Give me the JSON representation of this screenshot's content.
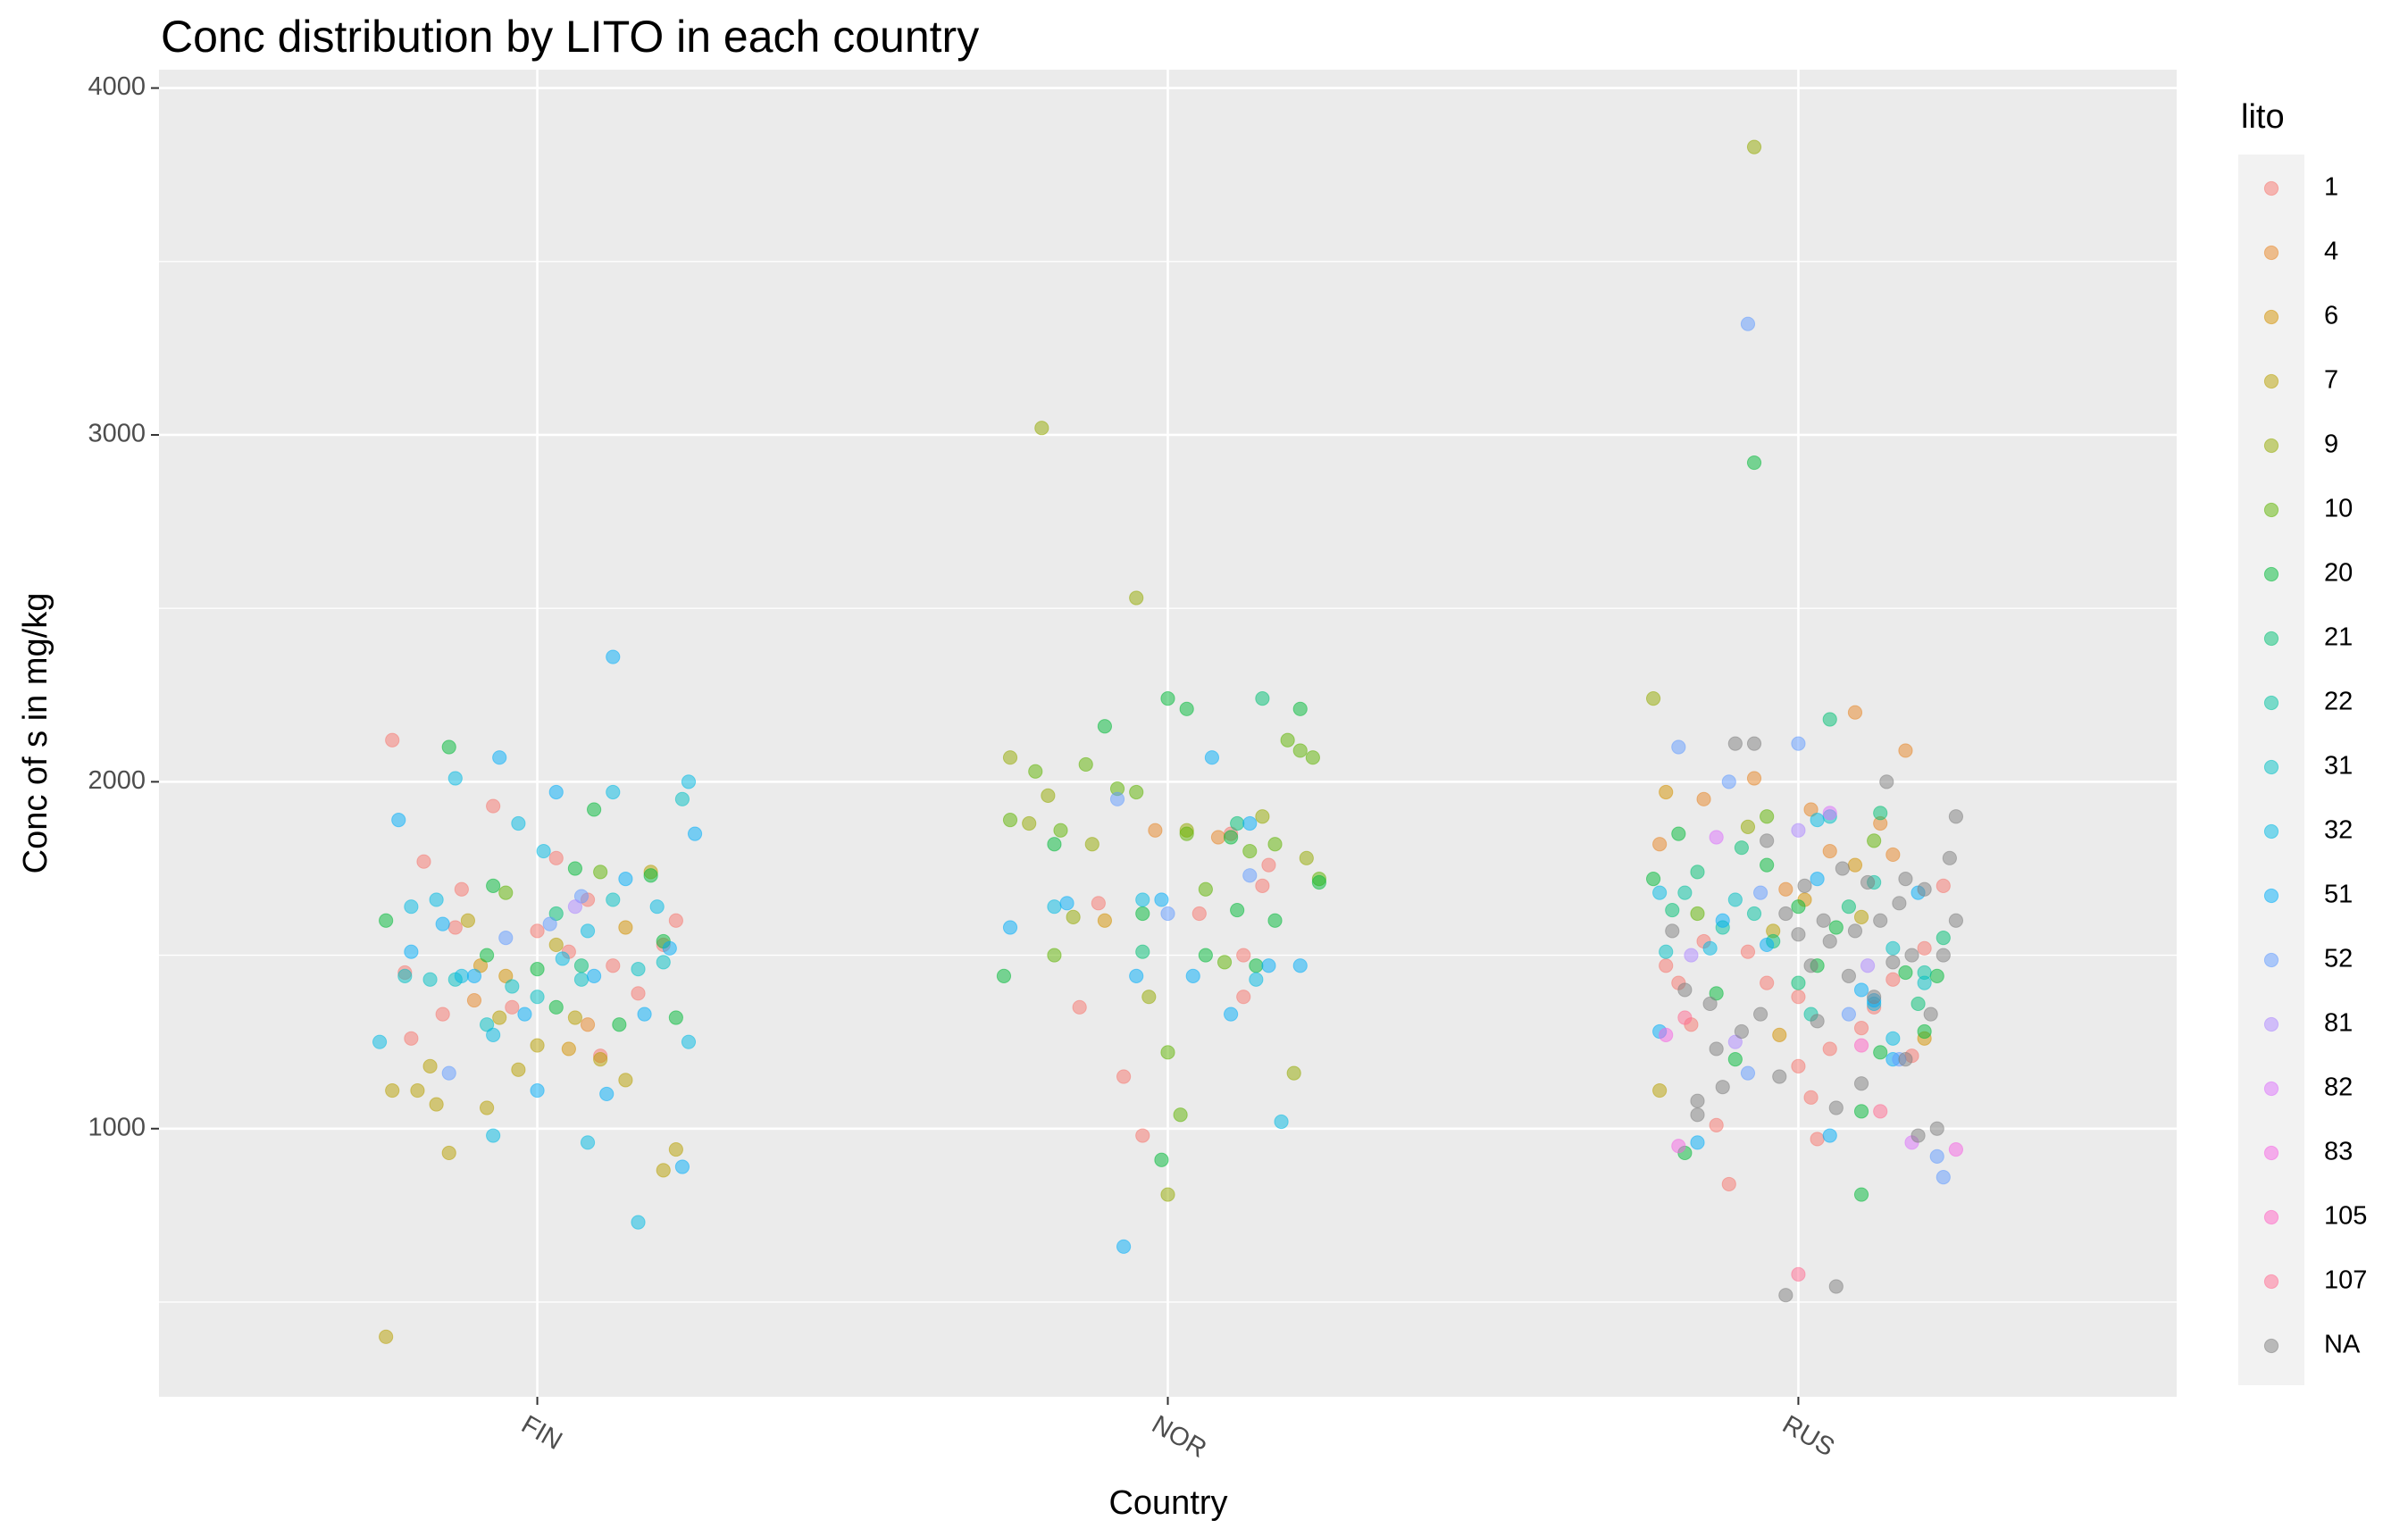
{
  "chart_data": {
    "type": "scatter",
    "title": "Conc distribution by LITO in each country",
    "x_label": "Country",
    "y_label": "Conc of  s  in mg/kg",
    "legend_title": "lito",
    "legend_position": "right",
    "grid": true,
    "point_alpha": 0.5,
    "xlim": [
      0.4,
      3.6
    ],
    "xticks": [
      {
        "value": 1,
        "label": "FIN"
      },
      {
        "value": 2,
        "label": "NOR"
      },
      {
        "value": 3,
        "label": "RUS"
      }
    ],
    "ylim": [
      227,
      4053
    ],
    "yticks": [
      1000,
      2000,
      3000,
      4000
    ],
    "yminorticks": [
      500,
      1500,
      2500,
      3500
    ],
    "series": [
      {
        "name": "1",
        "color": "#F8766D",
        "x": [
          0.77,
          0.79,
          0.82,
          0.85,
          0.88,
          0.93,
          0.96,
          1.0,
          1.03,
          1.05,
          1.08,
          1.12,
          1.16,
          1.2,
          1.22,
          0.8,
          1.1,
          0.87,
          1.86,
          1.89,
          1.93,
          1.96,
          2.05,
          2.12,
          2.12,
          2.16,
          2.15,
          2.1,
          2.79,
          2.81,
          2.83,
          2.85,
          2.87,
          2.89,
          2.92,
          2.95,
          3.0,
          3.02,
          3.03,
          3.05,
          3.1,
          3.12,
          3.15,
          3.18,
          3.2,
          3.23,
          3.0
        ],
        "values": [
          2120,
          1450,
          1770,
          1330,
          1690,
          1930,
          1350,
          1570,
          1780,
          1510,
          1660,
          1470,
          1390,
          1530,
          1600,
          1260,
          1210,
          1580,
          1350,
          1650,
          1150,
          980,
          1620,
          1380,
          1500,
          1760,
          1700,
          1850,
          1470,
          1420,
          1300,
          1540,
          1010,
          840,
          1510,
          1420,
          1180,
          1090,
          970,
          1230,
          1290,
          1350,
          1430,
          1210,
          1520,
          1700,
          1380
        ]
      },
      {
        "name": "4",
        "color": "#E88526",
        "x": [
          1.08,
          0.9,
          1.98,
          2.08,
          2.78,
          2.85,
          2.93,
          3.02,
          3.09,
          3.13,
          3.17,
          3.05,
          2.98,
          3.15
        ],
        "values": [
          1300,
          1370,
          1860,
          1840,
          1820,
          1950,
          2010,
          1920,
          2200,
          1880,
          2090,
          1800,
          1690,
          1790
        ]
      },
      {
        "name": "6",
        "color": "#D39200",
        "x": [
          0.91,
          1.05,
          1.14,
          0.95,
          1.9,
          2.79,
          3.01,
          3.09,
          2.97,
          3.2
        ],
        "values": [
          1470,
          1230,
          1580,
          1440,
          1600,
          1970,
          1660,
          1760,
          1270,
          1260
        ]
      },
      {
        "name": "7",
        "color": "#B79F00",
        "x": [
          0.76,
          0.77,
          0.81,
          0.83,
          0.86,
          0.84,
          0.92,
          0.94,
          0.97,
          1.0,
          1.03,
          1.1,
          1.14,
          1.2,
          1.22,
          1.18,
          1.06,
          0.89,
          2.78,
          2.96,
          3.1
        ],
        "values": [
          400,
          1110,
          1110,
          1180,
          930,
          1070,
          1060,
          1320,
          1170,
          1240,
          1530,
          1200,
          1140,
          880,
          940,
          1740,
          1320,
          1600,
          1110,
          1570,
          1610
        ]
      },
      {
        "name": "9",
        "color": "#93AA00",
        "x": [
          1.75,
          1.78,
          1.81,
          1.8,
          1.95,
          1.85,
          1.88,
          2.0,
          2.03,
          2.2,
          2.22,
          1.97,
          2.15,
          2.93,
          2.77,
          2.92
        ],
        "values": [
          2070,
          1880,
          1960,
          3020,
          2530,
          1610,
          1820,
          810,
          1860,
          1160,
          1780,
          1380,
          1900,
          3830,
          2240,
          1870
        ]
      },
      {
        "name": "10",
        "color": "#5EB300",
        "x": [
          1.75,
          1.79,
          1.82,
          1.87,
          1.92,
          1.95,
          2.0,
          2.03,
          2.06,
          2.09,
          2.13,
          2.17,
          2.21,
          2.23,
          2.24,
          1.83,
          2.19,
          2.02,
          0.95,
          1.1,
          2.84,
          2.95,
          3.12
        ],
        "values": [
          1890,
          2030,
          1500,
          2050,
          1980,
          1970,
          1220,
          1850,
          1690,
          1480,
          1800,
          1820,
          2090,
          2070,
          1720,
          1860,
          2120,
          1040,
          1680,
          1740,
          1620,
          1900,
          1830
        ]
      },
      {
        "name": "20",
        "color": "#00BA38",
        "x": [
          0.76,
          0.86,
          0.93,
          1.0,
          1.06,
          1.03,
          1.09,
          1.13,
          1.18,
          1.2,
          1.22,
          0.92,
          1.74,
          1.82,
          1.9,
          1.96,
          2.0,
          2.03,
          2.06,
          2.1,
          2.14,
          2.17,
          2.21,
          2.24,
          1.99,
          2.11,
          2.93,
          2.77,
          2.81,
          2.87,
          2.9,
          2.95,
          3.0,
          3.03,
          3.06,
          3.1,
          3.13,
          3.17,
          3.2,
          3.22,
          3.1,
          2.82
        ],
        "values": [
          1600,
          2100,
          1700,
          1460,
          1750,
          1350,
          1920,
          1300,
          1730,
          1540,
          1320,
          1500,
          1440,
          1820,
          2160,
          1620,
          2240,
          2210,
          1500,
          1840,
          1470,
          1600,
          2210,
          1710,
          910,
          1630,
          2920,
          1720,
          1850,
          1390,
          1200,
          1760,
          1640,
          1470,
          1580,
          1050,
          1220,
          1450,
          1280,
          1440,
          810,
          930
        ]
      },
      {
        "name": "21",
        "color": "#00BF74",
        "x": [
          1.07,
          1.03,
          2.15,
          2.11,
          1.96,
          2.8,
          2.84,
          2.91,
          2.96,
          3.0,
          3.05,
          3.08,
          3.13,
          3.19,
          3.23
        ],
        "values": [
          1470,
          1620,
          2240,
          1880,
          1510,
          1630,
          1740,
          1810,
          1540,
          1420,
          2180,
          1640,
          1910,
          1360,
          1550
        ]
      },
      {
        "name": "22",
        "color": "#00C19F",
        "x": [
          2.82,
          2.88,
          2.93,
          3.02,
          3.12,
          3.2
        ],
        "values": [
          1680,
          1580,
          1620,
          1330,
          1710,
          1450
        ]
      },
      {
        "name": "31",
        "color": "#00BFC4",
        "x": [
          0.79,
          0.83,
          0.87,
          0.92,
          0.96,
          1.0,
          1.07,
          1.12,
          1.16,
          1.2,
          1.23,
          2.79,
          2.9,
          3.05,
          3.15,
          3.2
        ],
        "values": [
          1440,
          1430,
          1430,
          1300,
          1410,
          1380,
          1430,
          1660,
          1460,
          1480,
          1950,
          1510,
          1660,
          1900,
          1520,
          1420
        ]
      },
      {
        "name": "32",
        "color": "#00B9E3",
        "x": [
          0.75,
          0.8,
          0.84,
          0.87,
          0.88,
          0.93,
          0.97,
          1.01,
          1.04,
          1.08,
          1.12,
          1.16,
          1.19,
          1.24,
          1.24,
          0.93,
          1.08,
          1.82,
          1.96,
          2.14,
          2.18,
          2.78,
          2.86,
          3.03,
          3.12,
          3.15
        ],
        "values": [
          1250,
          1640,
          1660,
          2010,
          1440,
          1270,
          1880,
          1800,
          1490,
          1570,
          1970,
          730,
          1640,
          2000,
          1250,
          980,
          960,
          1640,
          1660,
          1430,
          1020,
          1680,
          1520,
          1890,
          1360,
          1260
        ]
      },
      {
        "name": "51",
        "color": "#00ADFA",
        "x": [
          0.78,
          0.8,
          0.85,
          0.9,
          0.94,
          0.98,
          1.03,
          1.09,
          1.12,
          1.14,
          1.17,
          1.21,
          1.23,
          1.25,
          1.0,
          1.11,
          1.75,
          1.84,
          1.93,
          1.95,
          1.99,
          2.07,
          2.1,
          2.16,
          2.21,
          2.13,
          2.04,
          2.78,
          2.84,
          2.88,
          2.95,
          3.03,
          3.05,
          3.1,
          3.15,
          3.19,
          3.12
        ],
        "values": [
          1890,
          1510,
          1590,
          1440,
          2070,
          1330,
          1970,
          1440,
          2360,
          1720,
          1330,
          1520,
          890,
          1850,
          1110,
          1100,
          1580,
          1650,
          660,
          1440,
          1660,
          2070,
          1330,
          1470,
          1470,
          1880,
          1440,
          1280,
          960,
          1600,
          1530,
          1720,
          980,
          1400,
          1200,
          1680,
          1370
        ]
      },
      {
        "name": "52",
        "color": "#619CFF",
        "x": [
          0.86,
          0.95,
          1.02,
          1.07,
          1.92,
          2.0,
          2.13,
          2.92,
          2.81,
          2.89,
          2.94,
          3.0,
          3.08,
          3.16,
          3.22,
          3.23,
          2.92
        ],
        "values": [
          1160,
          1550,
          1590,
          1670,
          1950,
          1620,
          1730,
          3320,
          2100,
          2000,
          1680,
          2110,
          1330,
          1200,
          920,
          860,
          1160
        ]
      },
      {
        "name": "81",
        "color": "#AE87FF",
        "x": [
          1.06,
          2.83,
          2.9,
          3.0,
          3.11
        ],
        "values": [
          1640,
          1500,
          1250,
          1860,
          1470
        ]
      },
      {
        "name": "82",
        "color": "#DB72FB",
        "x": [
          2.87,
          3.05,
          3.18
        ],
        "values": [
          1840,
          1910,
          960
        ]
      },
      {
        "name": "83",
        "color": "#F564E3",
        "x": [
          2.79,
          2.81,
          3.25
        ],
        "values": [
          1270,
          950,
          940
        ]
      },
      {
        "name": "105",
        "color": "#FF61C3",
        "x": [
          3.1
        ],
        "values": [
          1240
        ]
      },
      {
        "name": "107",
        "color": "#FF6C91",
        "x": [
          2.82,
          3.0,
          3.13
        ],
        "values": [
          1320,
          580,
          1050
        ]
      },
      {
        "name": "NA",
        "color": "#7F7F7F",
        "x": [
          2.8,
          2.82,
          2.84,
          2.84,
          2.86,
          2.87,
          2.88,
          2.9,
          2.91,
          2.93,
          2.94,
          2.95,
          2.97,
          2.98,
          2.98,
          3.0,
          3.01,
          3.02,
          3.03,
          3.04,
          3.05,
          3.06,
          3.07,
          3.08,
          3.09,
          3.1,
          3.11,
          3.12,
          3.13,
          3.14,
          3.15,
          3.16,
          3.17,
          3.18,
          3.19,
          3.2,
          3.21,
          3.22,
          3.23,
          3.24,
          3.25,
          3.25,
          3.06,
          3.17
        ],
        "values": [
          1570,
          1400,
          1040,
          1080,
          1360,
          1230,
          1120,
          2110,
          1280,
          2110,
          1330,
          1830,
          1150,
          1620,
          520,
          1560,
          1700,
          1470,
          1310,
          1600,
          1540,
          1060,
          1750,
          1440,
          1570,
          1130,
          1710,
          1380,
          1600,
          2000,
          1480,
          1650,
          1200,
          1500,
          980,
          1690,
          1330,
          1000,
          1500,
          1780,
          1900,
          1600,
          545,
          1720
        ]
      }
    ]
  }
}
